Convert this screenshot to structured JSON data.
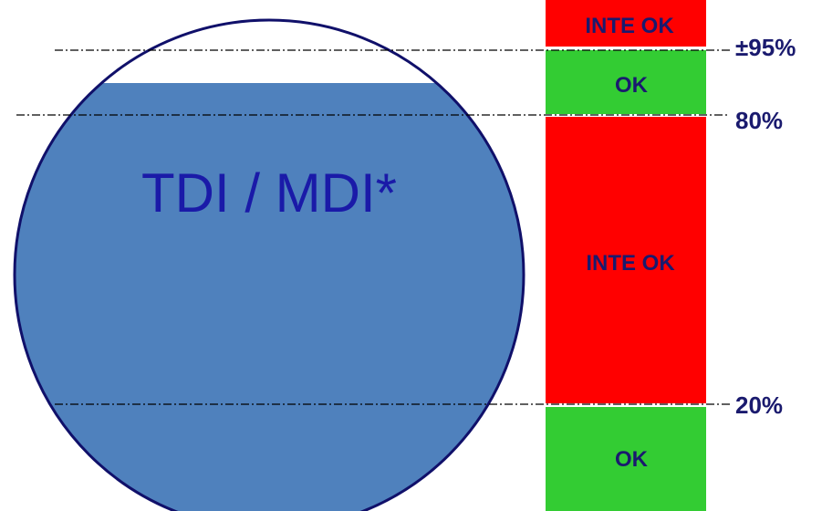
{
  "tank": {
    "label": "TDI / MDI*",
    "fill_color": "#4f81bd",
    "outline_color": "#10106a"
  },
  "bar": {
    "segments": [
      {
        "label": "INTE OK",
        "status": "not-ok",
        "color": "#ff0000"
      },
      {
        "label": "OK",
        "status": "ok",
        "color": "#33cc33"
      },
      {
        "label": "INTE OK",
        "status": "not-ok",
        "color": "#ff0000"
      },
      {
        "label": "OK",
        "status": "ok",
        "color": "#33cc33"
      }
    ]
  },
  "thresholds": [
    {
      "label": "±95%"
    },
    {
      "label": "80%"
    },
    {
      "label": "20%"
    }
  ]
}
